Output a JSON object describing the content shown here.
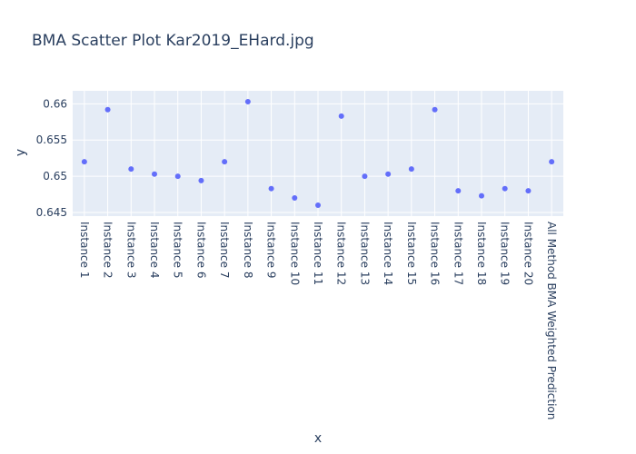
{
  "chart_data": {
    "type": "scatter",
    "title": "BMA Scatter Plot Kar2019_EHard.jpg",
    "xlabel": "x",
    "ylabel": "y",
    "categories": [
      "Instance 1",
      "Instance 2",
      "Instance 3",
      "Instance 4",
      "Instance 5",
      "Instance 6",
      "Instance 7",
      "Instance 8",
      "Instance 9",
      "Instance 10",
      "Instance 11",
      "Instance 12",
      "Instance 13",
      "Instance 14",
      "Instance 15",
      "Instance 16",
      "Instance 17",
      "Instance 18",
      "Instance 19",
      "Instance 20",
      "All Method BMA Weighted Prediction"
    ],
    "values": [
      0.652,
      0.6592,
      0.651,
      0.6503,
      0.65,
      0.6494,
      0.652,
      0.6603,
      0.6483,
      0.647,
      0.646,
      0.6583,
      0.65,
      0.6503,
      0.651,
      0.6592,
      0.648,
      0.6473,
      0.6483,
      0.648,
      0.652
    ],
    "ylim": [
      0.6445,
      0.6618
    ],
    "yticks": [
      0.645,
      0.65,
      0.655,
      0.66
    ],
    "ytick_labels": [
      "0.645",
      "0.65",
      "0.655",
      "0.66"
    ],
    "grid": true,
    "marker_color": "#636efa",
    "plot_bg": "#e5ecf6"
  }
}
